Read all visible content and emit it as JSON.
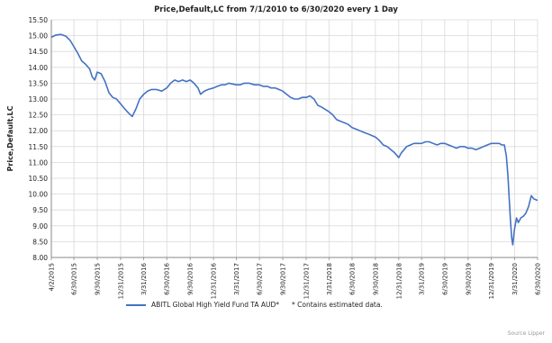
{
  "chart_data": {
    "type": "line",
    "title": "Price,Default,LC from 7/1/2010 to 6/30/2020 every 1 Day",
    "xlabel": "",
    "ylabel": "Price,Default,LC",
    "ylim": [
      8.0,
      15.5
    ],
    "yticks": [
      "15.50",
      "15.00",
      "14.50",
      "14.00",
      "13.50",
      "13.00",
      "12.50",
      "12.00",
      "11.50",
      "11.00",
      "10.50",
      "10.00",
      "9.50",
      "9.00",
      "8.50",
      "8.00"
    ],
    "xticks": [
      "4/2/2015",
      "6/30/2015",
      "9/30/2015",
      "12/31/2015",
      "3/31/2016",
      "6/30/2016",
      "9/30/2016",
      "12/31/2016",
      "3/31/2017",
      "6/30/2017",
      "9/30/2017",
      "12/31/2017",
      "3/31/2018",
      "6/30/2018",
      "9/30/2018",
      "12/31/2018",
      "3/31/2019",
      "6/30/2019",
      "9/30/2019",
      "12/31/2019",
      "3/31/2020",
      "6/30/2020"
    ],
    "grid": true,
    "legend_position": "bottom",
    "series": [
      {
        "name": "ABITL Global High Yield Fund TA AUD*",
        "color": "#4472c4",
        "points": [
          [
            "4/2/2015",
            14.95
          ],
          [
            "4/20/2015",
            15.02
          ],
          [
            "5/10/2015",
            15.04
          ],
          [
            "5/30/2015",
            14.98
          ],
          [
            "6/15/2015",
            14.85
          ],
          [
            "6/30/2015",
            14.65
          ],
          [
            "7/15/2015",
            14.45
          ],
          [
            "7/31/2015",
            14.2
          ],
          [
            "8/15/2015",
            14.1
          ],
          [
            "8/31/2015",
            13.95
          ],
          [
            "9/10/2015",
            13.7
          ],
          [
            "9/20/2015",
            13.6
          ],
          [
            "9/30/2015",
            13.85
          ],
          [
            "10/15/2015",
            13.8
          ],
          [
            "10/31/2015",
            13.55
          ],
          [
            "11/15/2015",
            13.2
          ],
          [
            "11/30/2015",
            13.05
          ],
          [
            "12/15/2015",
            13.0
          ],
          [
            "12/31/2015",
            12.85
          ],
          [
            "1/15/2016",
            12.7
          ],
          [
            "2/1/2016",
            12.55
          ],
          [
            "2/15/2016",
            12.45
          ],
          [
            "3/1/2016",
            12.7
          ],
          [
            "3/15/2016",
            13.0
          ],
          [
            "3/31/2016",
            13.15
          ],
          [
            "4/15/2016",
            13.25
          ],
          [
            "5/1/2016",
            13.3
          ],
          [
            "5/20/2016",
            13.3
          ],
          [
            "6/10/2016",
            13.25
          ],
          [
            "6/30/2016",
            13.35
          ],
          [
            "7/15/2016",
            13.5
          ],
          [
            "7/31/2016",
            13.6
          ],
          [
            "8/15/2016",
            13.55
          ],
          [
            "8/31/2016",
            13.6
          ],
          [
            "9/15/2016",
            13.55
          ],
          [
            "9/30/2016",
            13.6
          ],
          [
            "10/15/2016",
            13.5
          ],
          [
            "10/31/2016",
            13.35
          ],
          [
            "11/10/2016",
            13.15
          ],
          [
            "11/25/2016",
            13.25
          ],
          [
            "12/10/2016",
            13.3
          ],
          [
            "12/31/2016",
            13.35
          ],
          [
            "1/15/2017",
            13.4
          ],
          [
            "1/31/2017",
            13.45
          ],
          [
            "2/15/2017",
            13.45
          ],
          [
            "3/1/2017",
            13.5
          ],
          [
            "3/31/2017",
            13.45
          ],
          [
            "4/15/2017",
            13.45
          ],
          [
            "5/1/2017",
            13.5
          ],
          [
            "5/20/2017",
            13.5
          ],
          [
            "6/10/2017",
            13.45
          ],
          [
            "6/30/2017",
            13.45
          ],
          [
            "7/15/2017",
            13.4
          ],
          [
            "7/31/2017",
            13.4
          ],
          [
            "8/15/2017",
            13.35
          ],
          [
            "8/31/2017",
            13.35
          ],
          [
            "9/15/2017",
            13.3
          ],
          [
            "9/30/2017",
            13.25
          ],
          [
            "10/15/2017",
            13.15
          ],
          [
            "10/31/2017",
            13.05
          ],
          [
            "11/15/2017",
            13.0
          ],
          [
            "11/30/2017",
            13.0
          ],
          [
            "12/15/2017",
            13.05
          ],
          [
            "12/31/2017",
            13.05
          ],
          [
            "1/15/2018",
            13.1
          ],
          [
            "1/31/2018",
            13.0
          ],
          [
            "2/15/2018",
            12.8
          ],
          [
            "3/1/2018",
            12.75
          ],
          [
            "3/31/2018",
            12.6
          ],
          [
            "4/15/2018",
            12.5
          ],
          [
            "4/30/2018",
            12.35
          ],
          [
            "5/15/2018",
            12.3
          ],
          [
            "5/31/2018",
            12.25
          ],
          [
            "6/15/2018",
            12.2
          ],
          [
            "6/30/2018",
            12.1
          ],
          [
            "7/15/2018",
            12.05
          ],
          [
            "7/31/2018",
            12.0
          ],
          [
            "8/15/2018",
            11.95
          ],
          [
            "8/31/2018",
            11.9
          ],
          [
            "9/15/2018",
            11.85
          ],
          [
            "9/30/2018",
            11.8
          ],
          [
            "10/15/2018",
            11.7
          ],
          [
            "10/31/2018",
            11.55
          ],
          [
            "11/15/2018",
            11.5
          ],
          [
            "11/30/2018",
            11.4
          ],
          [
            "12/15/2018",
            11.3
          ],
          [
            "12/31/2018",
            11.15
          ],
          [
            "1/10/2019",
            11.3
          ],
          [
            "1/31/2019",
            11.5
          ],
          [
            "2/15/2019",
            11.55
          ],
          [
            "3/1/2019",
            11.6
          ],
          [
            "3/31/2019",
            11.6
          ],
          [
            "4/15/2019",
            11.65
          ],
          [
            "4/30/2019",
            11.65
          ],
          [
            "5/15/2019",
            11.6
          ],
          [
            "5/31/2019",
            11.55
          ],
          [
            "6/15/2019",
            11.6
          ],
          [
            "6/30/2019",
            11.6
          ],
          [
            "7/15/2019",
            11.55
          ],
          [
            "7/31/2019",
            11.5
          ],
          [
            "8/15/2019",
            11.45
          ],
          [
            "8/31/2019",
            11.5
          ],
          [
            "9/15/2019",
            11.5
          ],
          [
            "9/30/2019",
            11.45
          ],
          [
            "10/15/2019",
            11.45
          ],
          [
            "10/31/2019",
            11.4
          ],
          [
            "11/15/2019",
            11.45
          ],
          [
            "11/30/2019",
            11.5
          ],
          [
            "12/15/2019",
            11.55
          ],
          [
            "12/31/2019",
            11.6
          ],
          [
            "1/15/2020",
            11.6
          ],
          [
            "1/31/2020",
            11.6
          ],
          [
            "2/10/2020",
            11.55
          ],
          [
            "2/20/2020",
            11.55
          ],
          [
            "2/28/2020",
            11.2
          ],
          [
            "3/5/2020",
            10.6
          ],
          [
            "3/10/2020",
            9.9
          ],
          [
            "3/15/2020",
            9.2
          ],
          [
            "3/20/2020",
            8.6
          ],
          [
            "3/24/2020",
            8.4
          ],
          [
            "3/31/2020",
            8.9
          ],
          [
            "4/8/2020",
            9.25
          ],
          [
            "4/15/2020",
            9.1
          ],
          [
            "4/25/2020",
            9.25
          ],
          [
            "5/5/2020",
            9.3
          ],
          [
            "5/15/2020",
            9.4
          ],
          [
            "5/25/2020",
            9.6
          ],
          [
            "6/5/2020",
            9.95
          ],
          [
            "6/15/2020",
            9.85
          ],
          [
            "6/30/2020",
            9.8
          ]
        ]
      }
    ]
  },
  "legend": {
    "series_label": "ABITL Global High Yield Fund TA AUD*",
    "note": "* Contains estimated data."
  },
  "source_label": "Source Lipper"
}
